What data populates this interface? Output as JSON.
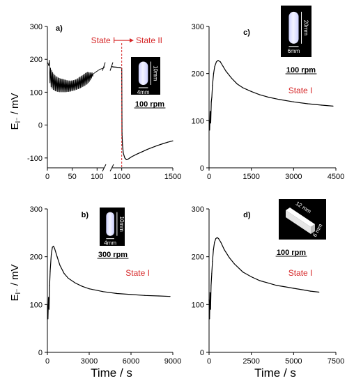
{
  "figure": {
    "ylabel_main": "E",
    "ylabel_sub": "I⁻",
    "ylabel_unit": " / mV",
    "xlabel": "Time / s"
  },
  "chart_data": [
    {
      "id": "a",
      "type": "line",
      "panel_label": "a)",
      "ylim": [
        -130,
        300
      ],
      "yticks": [
        -100,
        0,
        100,
        200,
        300
      ],
      "xticks_left": [
        0,
        50,
        100
      ],
      "xticks_right": [
        1000,
        1500
      ],
      "x_break": [
        115,
        900
      ],
      "xlim_left": [
        0,
        115
      ],
      "xlim_right": [
        900,
        1500
      ],
      "annotations": {
        "state_from": "State I",
        "state_to": "State II",
        "rpm": "100 rpm"
      },
      "inset": {
        "kind": "rod",
        "dims": [
          "10mm",
          "4mm"
        ]
      },
      "series": [
        {
          "segment": "left",
          "oscillation": {
            "x_from": 3,
            "x_to": 90,
            "period": 2.2
          },
          "x": [
            0,
            2,
            5,
            10,
            15,
            20,
            25,
            30,
            35,
            40,
            45,
            50,
            55,
            60,
            65,
            70,
            75,
            80,
            85,
            90,
            95,
            100,
            105,
            110,
            115
          ],
          "y_upper": [
            190,
            210,
            175,
            160,
            150,
            145,
            142,
            140,
            138,
            136,
            135,
            136,
            138,
            142,
            148,
            152,
            158,
            162,
            160,
            160,
            162,
            165,
            170,
            172,
            178
          ],
          "y_lower": [
            190,
            150,
            118,
            108,
            103,
            101,
            100,
            100,
            100,
            101,
            102,
            104,
            106,
            109,
            112,
            116,
            120,
            126,
            135,
            148,
            158,
            165,
            170,
            172,
            178
          ]
        },
        {
          "segment": "right",
          "x": [
            900,
            920,
            950,
            980,
            995,
            1000,
            1003,
            1008,
            1015,
            1030,
            1045,
            1060,
            1080,
            1100,
            1150,
            1200,
            1250,
            1300,
            1350,
            1400,
            1450,
            1500
          ],
          "y": [
            178,
            177,
            176,
            175,
            174,
            172,
            -25,
            -60,
            -85,
            -100,
            -105,
            -104,
            -100,
            -96,
            -88,
            -81,
            -74,
            -68,
            -62,
            -57,
            -52,
            -48
          ]
        }
      ]
    },
    {
      "id": "c",
      "type": "line",
      "panel_label": "c)",
      "xlim": [
        0,
        4500
      ],
      "ylim": [
        0,
        300
      ],
      "xticks": [
        0,
        1500,
        3000,
        4500
      ],
      "yticks": [
        0,
        100,
        200,
        300
      ],
      "annotations": {
        "state": "State I",
        "rpm": "100 rpm"
      },
      "inset": {
        "kind": "rod",
        "dims": [
          "20mm",
          "6mm"
        ]
      },
      "x": [
        0,
        20,
        40,
        60,
        80,
        100,
        120,
        160,
        200,
        260,
        320,
        400,
        500,
        600,
        800,
        1000,
        1200,
        1500,
        1800,
        2100,
        2500,
        3000,
        3500,
        4000,
        4400
      ],
      "y": [
        100,
        80,
        120,
        95,
        140,
        150,
        175,
        200,
        215,
        225,
        228,
        225,
        215,
        205,
        190,
        178,
        170,
        162,
        155,
        150,
        145,
        140,
        136,
        133,
        131
      ]
    },
    {
      "id": "b",
      "type": "line",
      "panel_label": "b)",
      "xlim": [
        0,
        9000
      ],
      "ylim": [
        0,
        300
      ],
      "xticks": [
        0,
        3000,
        6000,
        9000
      ],
      "yticks": [
        0,
        100,
        200,
        300
      ],
      "annotations": {
        "state": "State I",
        "rpm": "300 rpm"
      },
      "inset": {
        "kind": "rod",
        "dims": [
          "10mm",
          "4mm"
        ]
      },
      "x": [
        0,
        40,
        80,
        120,
        160,
        200,
        280,
        360,
        440,
        520,
        700,
        900,
        1200,
        1500,
        2000,
        2500,
        3000,
        4000,
        5000,
        6000,
        7000,
        8000,
        8800
      ],
      "y": [
        100,
        70,
        115,
        90,
        140,
        170,
        205,
        220,
        222,
        217,
        200,
        182,
        165,
        155,
        145,
        138,
        133,
        127,
        123,
        121,
        119,
        118,
        117
      ]
    },
    {
      "id": "d",
      "type": "line",
      "panel_label": "d)",
      "xlim": [
        0,
        7500
      ],
      "ylim": [
        0,
        300
      ],
      "xticks": [
        0,
        2500,
        5000,
        7500
      ],
      "yticks": [
        0,
        100,
        200,
        300
      ],
      "annotations": {
        "state": "State I",
        "rpm": "100 rpm"
      },
      "inset": {
        "kind": "bar",
        "dims": [
          "12 mm",
          "6 mm"
        ]
      },
      "x": [
        0,
        30,
        60,
        90,
        120,
        160,
        200,
        260,
        320,
        400,
        480,
        560,
        700,
        900,
        1200,
        1500,
        2000,
        2500,
        3000,
        3500,
        4000,
        4500,
        5000,
        5500,
        6000,
        6500
      ],
      "y": [
        110,
        70,
        125,
        90,
        140,
        165,
        190,
        215,
        230,
        238,
        240,
        238,
        230,
        215,
        198,
        185,
        168,
        158,
        150,
        145,
        140,
        137,
        134,
        131,
        128,
        126
      ]
    }
  ]
}
